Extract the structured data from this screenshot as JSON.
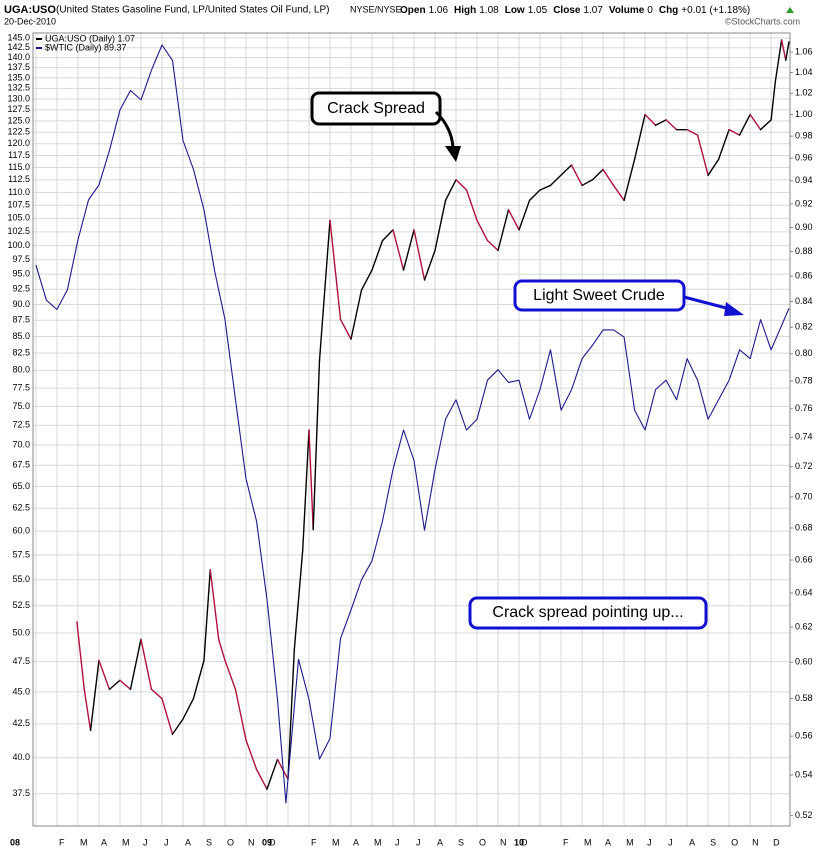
{
  "chart_data": {
    "type": "line",
    "title": "UGA:USO",
    "subtitle": "(United States Gasoline Fund, LP/United States Oil Fund, LP)",
    "exchange": "NYSE/NYSE",
    "date": "20-Dec-2010",
    "quote": [
      {
        "label": "Open",
        "value": 1.06
      },
      {
        "label": "High",
        "value": 1.08
      },
      {
        "label": "Low",
        "value": 1.05
      },
      {
        "label": "Close",
        "value": 1.07
      },
      {
        "label": "Volume",
        "value": 0
      },
      {
        "label": "Chg",
        "value": "+0.01 (+1.18%)"
      }
    ],
    "credit": "©StockCharts.com",
    "log_scale": true,
    "grid": true,
    "legend": "top-left",
    "xlim": [
      -0.14,
      35.9
    ],
    "xticks": [
      {
        "value": 0,
        "label": "08"
      },
      {
        "value": 1,
        "label": "F"
      },
      {
        "value": 2,
        "label": "M"
      },
      {
        "value": 3,
        "label": "A"
      },
      {
        "value": 4,
        "label": "M"
      },
      {
        "value": 5,
        "label": "J"
      },
      {
        "value": 6,
        "label": "J"
      },
      {
        "value": 7,
        "label": "A"
      },
      {
        "value": 8,
        "label": "S"
      },
      {
        "value": 9,
        "label": "O"
      },
      {
        "value": 10,
        "label": "N"
      },
      {
        "value": 11,
        "label": "D"
      },
      {
        "value": 12,
        "label": "09"
      },
      {
        "value": 13,
        "label": "F"
      },
      {
        "value": 14,
        "label": "M"
      },
      {
        "value": 15,
        "label": "A"
      },
      {
        "value": 16,
        "label": "M"
      },
      {
        "value": 17,
        "label": "J"
      },
      {
        "value": 18,
        "label": "J"
      },
      {
        "value": 19,
        "label": "A"
      },
      {
        "value": 20,
        "label": "S"
      },
      {
        "value": 21,
        "label": "O"
      },
      {
        "value": 22,
        "label": "N"
      },
      {
        "value": 23,
        "label": "D"
      },
      {
        "value": 24,
        "label": "10"
      },
      {
        "value": 25,
        "label": "F"
      },
      {
        "value": 26,
        "label": "M"
      },
      {
        "value": 27,
        "label": "A"
      },
      {
        "value": 28,
        "label": "M"
      },
      {
        "value": 29,
        "label": "J"
      },
      {
        "value": 30,
        "label": "J"
      },
      {
        "value": 31,
        "label": "A"
      },
      {
        "value": 32,
        "label": "S"
      },
      {
        "value": 33,
        "label": "O"
      },
      {
        "value": 34,
        "label": "N"
      },
      {
        "value": 35,
        "label": "D"
      }
    ],
    "ylim": [
      35.4,
      146.3
    ],
    "yticks": [
      37.5,
      {
        "value": 40,
        "label": "40.0"
      },
      42.5,
      {
        "value": 45,
        "label": "45.0"
      },
      47.5,
      {
        "value": 50,
        "label": "50.0"
      },
      52.5,
      {
        "value": 55,
        "label": "55.0"
      },
      57.5,
      {
        "value": 60,
        "label": "60.0"
      },
      62.5,
      {
        "value": 65,
        "label": "65.0"
      },
      67.5,
      {
        "value": 70,
        "label": "70.0"
      },
      72.5,
      {
        "value": 75,
        "label": "75.0"
      },
      77.5,
      {
        "value": 80,
        "label": "80.0"
      },
      82.5,
      {
        "value": 85,
        "label": "85.0"
      },
      87.5,
      {
        "value": 90,
        "label": "90.0"
      },
      92.5,
      {
        "value": 95,
        "label": "95.0"
      },
      97.5,
      {
        "value": 100,
        "label": "100.0"
      },
      102.5,
      {
        "value": 105,
        "label": "105.0"
      },
      107.5,
      {
        "value": 110,
        "label": "110.0"
      },
      112.5,
      {
        "value": 115,
        "label": "115.0"
      },
      117.5,
      {
        "value": 120,
        "label": "120.0"
      },
      122.5,
      {
        "value": 125,
        "label": "125.0"
      },
      127.5,
      {
        "value": 130,
        "label": "130.0"
      },
      132.5,
      {
        "value": 135,
        "label": "135.0"
      },
      137.5,
      {
        "value": 140,
        "label": "140.0"
      },
      142.5,
      {
        "value": 145,
        "label": "145.0"
      }
    ],
    "y2lim": [
      0.515,
      1.079
    ],
    "y2ticks": [
      0.52,
      0.54,
      0.56,
      0.58,
      {
        "value": 0.6,
        "label": "0.60"
      },
      0.62,
      0.64,
      0.66,
      0.68,
      {
        "value": 0.7,
        "label": "0.70"
      },
      0.72,
      0.74,
      0.76,
      0.78,
      {
        "value": 0.8,
        "label": "0.80"
      },
      0.82,
      0.84,
      0.86,
      0.88,
      {
        "value": 0.9,
        "label": "0.90"
      },
      0.92,
      0.94,
      0.96,
      0.98,
      {
        "value": 1,
        "label": "1.00"
      },
      1.02,
      1.04,
      1.06
    ],
    "series": [
      {
        "name": "UGA:USO (Daily) 1.07",
        "color": "#000000",
        "down_color": "#b0103a",
        "axis": "y2",
        "x": [
          1.95,
          2.3,
          2.6,
          3,
          3.5,
          4,
          4.5,
          5,
          5.5,
          6,
          6.5,
          7,
          7.5,
          8,
          8.3,
          8.7,
          9,
          9.5,
          10,
          10.5,
          11,
          11.5,
          12,
          12.3,
          12.7,
          13,
          13.2,
          13.5,
          14,
          14.5,
          15,
          15.5,
          16,
          16.5,
          17,
          17.5,
          18,
          18.5,
          19,
          19.5,
          20,
          20.5,
          21,
          21.5,
          22,
          22.5,
          23,
          23.5,
          24,
          24.5,
          25,
          25.5,
          26,
          26.5,
          27,
          27.5,
          28,
          28.5,
          29,
          29.5,
          30,
          30.5,
          31,
          31.5,
          32,
          32.5,
          33,
          33.5,
          34,
          34.5,
          35,
          35.2,
          35.5,
          35.7,
          35.85
        ],
        "values": [
          0.623,
          0.585,
          0.563,
          0.601,
          0.585,
          0.59,
          0.585,
          0.613,
          0.585,
          0.58,
          0.561,
          0.569,
          0.58,
          0.601,
          0.654,
          0.613,
          0.601,
          0.585,
          0.558,
          0.543,
          0.533,
          0.548,
          0.538,
          0.607,
          0.666,
          0.745,
          0.679,
          0.795,
          0.906,
          0.826,
          0.811,
          0.849,
          0.865,
          0.889,
          0.898,
          0.865,
          0.898,
          0.857,
          0.881,
          0.923,
          0.941,
          0.932,
          0.906,
          0.889,
          0.881,
          0.915,
          0.898,
          0.923,
          0.932,
          0.936,
          0.945,
          0.954,
          0.936,
          0.941,
          0.95,
          0.936,
          0.923,
          0.959,
          1.0,
          0.99,
          0.995,
          0.986,
          0.986,
          0.981,
          0.945,
          0.959,
          0.986,
          0.981,
          1.0,
          0.986,
          0.995,
          1.031,
          1.072,
          1.052,
          1.07
        ]
      },
      {
        "name": "$WTIC (Daily) 89.37",
        "color": "#1a1a8c",
        "x": [
          0,
          0.5,
          1,
          1.5,
          2,
          2.5,
          3,
          3.5,
          4,
          4.5,
          5,
          5.5,
          6,
          6.5,
          7,
          7.5,
          8,
          8.5,
          9,
          9.5,
          10,
          10.5,
          11,
          11.5,
          11.9,
          12.5,
          13,
          13.5,
          14,
          14.5,
          15,
          15.5,
          16,
          16.5,
          17,
          17.5,
          18,
          18.5,
          19,
          19.5,
          20,
          20.5,
          21,
          21.5,
          22,
          22.5,
          23,
          23.5,
          24,
          24.5,
          25,
          25.5,
          26,
          26.5,
          27,
          27.5,
          28,
          28.5,
          29,
          29.5,
          30,
          30.5,
          31,
          31.5,
          32,
          32.5,
          33,
          33.5,
          34,
          34.5,
          35,
          35.85
        ],
        "values": [
          96.6,
          90.7,
          89.2,
          92.4,
          101,
          108.5,
          111.5,
          118.6,
          127.5,
          132,
          129.8,
          136.9,
          143.2,
          139.3,
          120.7,
          114.6,
          106.6,
          95.7,
          87.6,
          75.9,
          65.9,
          61.1,
          53.1,
          44.4,
          36.9,
          47.7,
          44.4,
          39.9,
          41.4,
          49.5,
          52.1,
          55,
          56.9,
          61.1,
          67,
          71.9,
          68.1,
          60.1,
          67,
          73.3,
          75.9,
          71.9,
          73.3,
          78.6,
          80.1,
          78.3,
          78.6,
          73.3,
          77.3,
          83,
          74.5,
          77.3,
          81.7,
          83.7,
          86,
          86,
          84.9,
          74.5,
          71.9,
          77.3,
          78.6,
          75.9,
          81.7,
          78.6,
          73.3,
          75.9,
          78.6,
          83,
          81.7,
          87.6,
          83,
          89.37
        ]
      }
    ],
    "annotations": [
      "Crack Spread",
      "Light Sweet Crude",
      "Crack spread pointing up..."
    ]
  }
}
